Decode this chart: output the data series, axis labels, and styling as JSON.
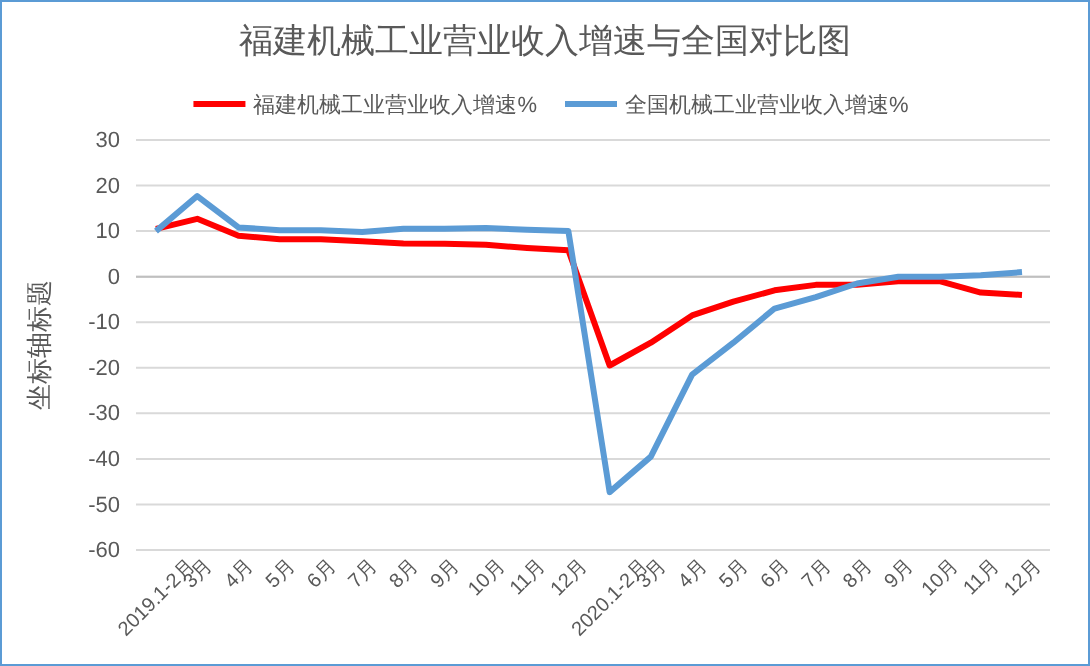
{
  "chart_data": {
    "type": "line",
    "title": "福建机械工业营业收入增速与全国对比图",
    "ylabel": "坐标轴标题",
    "categories": [
      "2019.1-2月",
      "3月",
      "4月",
      "5月",
      "6月",
      "7月",
      "8月",
      "9月",
      "10月",
      "11月",
      "12月",
      "2020.1-2月",
      "3月",
      "4月",
      "5月",
      "6月",
      "7月",
      "8月",
      "9月",
      "10月",
      "11月",
      "12月"
    ],
    "series": [
      {
        "name": "福建机械工业营业收入增速%",
        "color": "#ff0000",
        "values": [
          10.5,
          12.7,
          9,
          8.2,
          8.2,
          7.8,
          7.3,
          7.2,
          7,
          6.3,
          5.8,
          -19.5,
          -14.5,
          -8.5,
          -5.5,
          -3,
          -1.8,
          -1.8,
          -1,
          -1,
          -3.5,
          -4
        ]
      },
      {
        "name": "全国机械工业营业收入增速%",
        "color": "#5b9bd5",
        "values": [
          10,
          17.7,
          10.8,
          10.2,
          10.2,
          9.8,
          10.5,
          10.5,
          10.7,
          10.3,
          10,
          -47.3,
          -39.5,
          -21.5,
          -14.5,
          -7,
          -4.5,
          -1.5,
          0,
          0,
          0.3,
          1
        ]
      }
    ],
    "ylim": [
      -60,
      30
    ],
    "yticks": [
      -60,
      -50,
      -40,
      -30,
      -20,
      -10,
      0,
      10,
      20,
      30
    ],
    "grid": "y",
    "legend": "top",
    "marker": "none",
    "line_style": "solid"
  }
}
